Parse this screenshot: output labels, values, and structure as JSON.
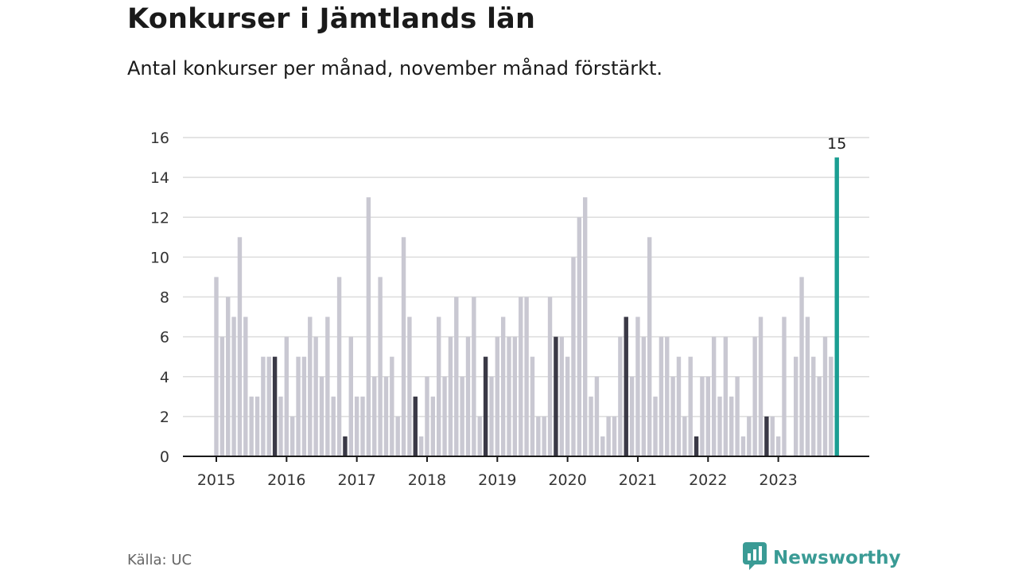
{
  "title": "Konkurser i Jämtlands län",
  "subtitle": "Antal konkurser per månad, november månad förstärkt.",
  "source": "Källa: UC",
  "brand": {
    "name": "Newsworthy",
    "icon": "newsworthy-logo-icon"
  },
  "colors": {
    "bar": "#c9c8d2",
    "november": "#3a3946",
    "highlight": "#1a9e92",
    "grid": "#dcdcdc",
    "axis": "#1a1a1a",
    "brand": "#3a9b95"
  },
  "chart_data": {
    "type": "bar",
    "title": "Konkurser i Jämtlands län",
    "subtitle": "Antal konkurser per månad, november månad förstärkt.",
    "xlabel": "",
    "ylabel": "",
    "ylim": [
      0,
      16
    ],
    "yticks": [
      0,
      2,
      4,
      6,
      8,
      10,
      12,
      14,
      16
    ],
    "year_labels": [
      "2015",
      "2016",
      "2017",
      "2018",
      "2019",
      "2020",
      "2021",
      "2022",
      "2023"
    ],
    "start": "2015-01",
    "end": "2023-11",
    "grid": true,
    "legend": "none",
    "annotation": {
      "month": "2023-11",
      "label": "15"
    },
    "series": [
      {
        "values": [
          9,
          6,
          8,
          7,
          11,
          7,
          3,
          3,
          5,
          5,
          5,
          3,
          6,
          2,
          5,
          5,
          7,
          6,
          4,
          7,
          3,
          9,
          1,
          6,
          3,
          3,
          13,
          4,
          9,
          4,
          5,
          2,
          11,
          7,
          3,
          1,
          4,
          3,
          7,
          4,
          6,
          8,
          4,
          6,
          8,
          2,
          5,
          4,
          6,
          7,
          6,
          6,
          8,
          8,
          5,
          2,
          2,
          8,
          6,
          6,
          5,
          10,
          12,
          13,
          3,
          4,
          1,
          2,
          2,
          6,
          7,
          4,
          7,
          6,
          11,
          3,
          6,
          6,
          4,
          5,
          2,
          5,
          1,
          4,
          4,
          6,
          3,
          6,
          3,
          4,
          1,
          2,
          6,
          7,
          2,
          2,
          1,
          7,
          0,
          5,
          9,
          7,
          5,
          4,
          6,
          5,
          15
        ]
      }
    ]
  }
}
